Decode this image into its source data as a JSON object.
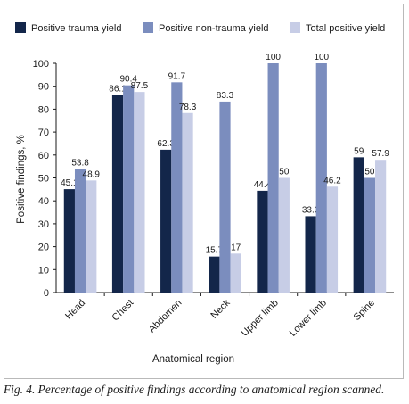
{
  "caption": "Fig. 4. Percentage of positive findings according to anatomical region scanned.",
  "chart_data": {
    "type": "bar",
    "title": "",
    "xlabel": "Anatomical region",
    "ylabel": "Positive findings, %",
    "ylim": [
      0,
      100
    ],
    "yticks": [
      0,
      10,
      20,
      30,
      40,
      50,
      60,
      70,
      80,
      90,
      100
    ],
    "grid": false,
    "legend_position": "top",
    "categories": [
      "Head",
      "Chest",
      "Abdomen",
      "Neck",
      "Upper limb",
      "Lower limb",
      "Spine"
    ],
    "series": [
      {
        "name": "Positive trauma yield",
        "color": "#13264a",
        "values": [
          45.1,
          86.1,
          62.3,
          15.7,
          44.4,
          33.3,
          59
        ]
      },
      {
        "name": "Positive non-trauma yield",
        "color": "#7b8dbe",
        "values": [
          53.8,
          90.4,
          91.7,
          83.3,
          100,
          100,
          50
        ]
      },
      {
        "name": "Total positive yield",
        "color": "#c7cde6",
        "values": [
          48.9,
          87.5,
          78.3,
          17,
          50,
          46.2,
          57.9
        ]
      }
    ]
  }
}
